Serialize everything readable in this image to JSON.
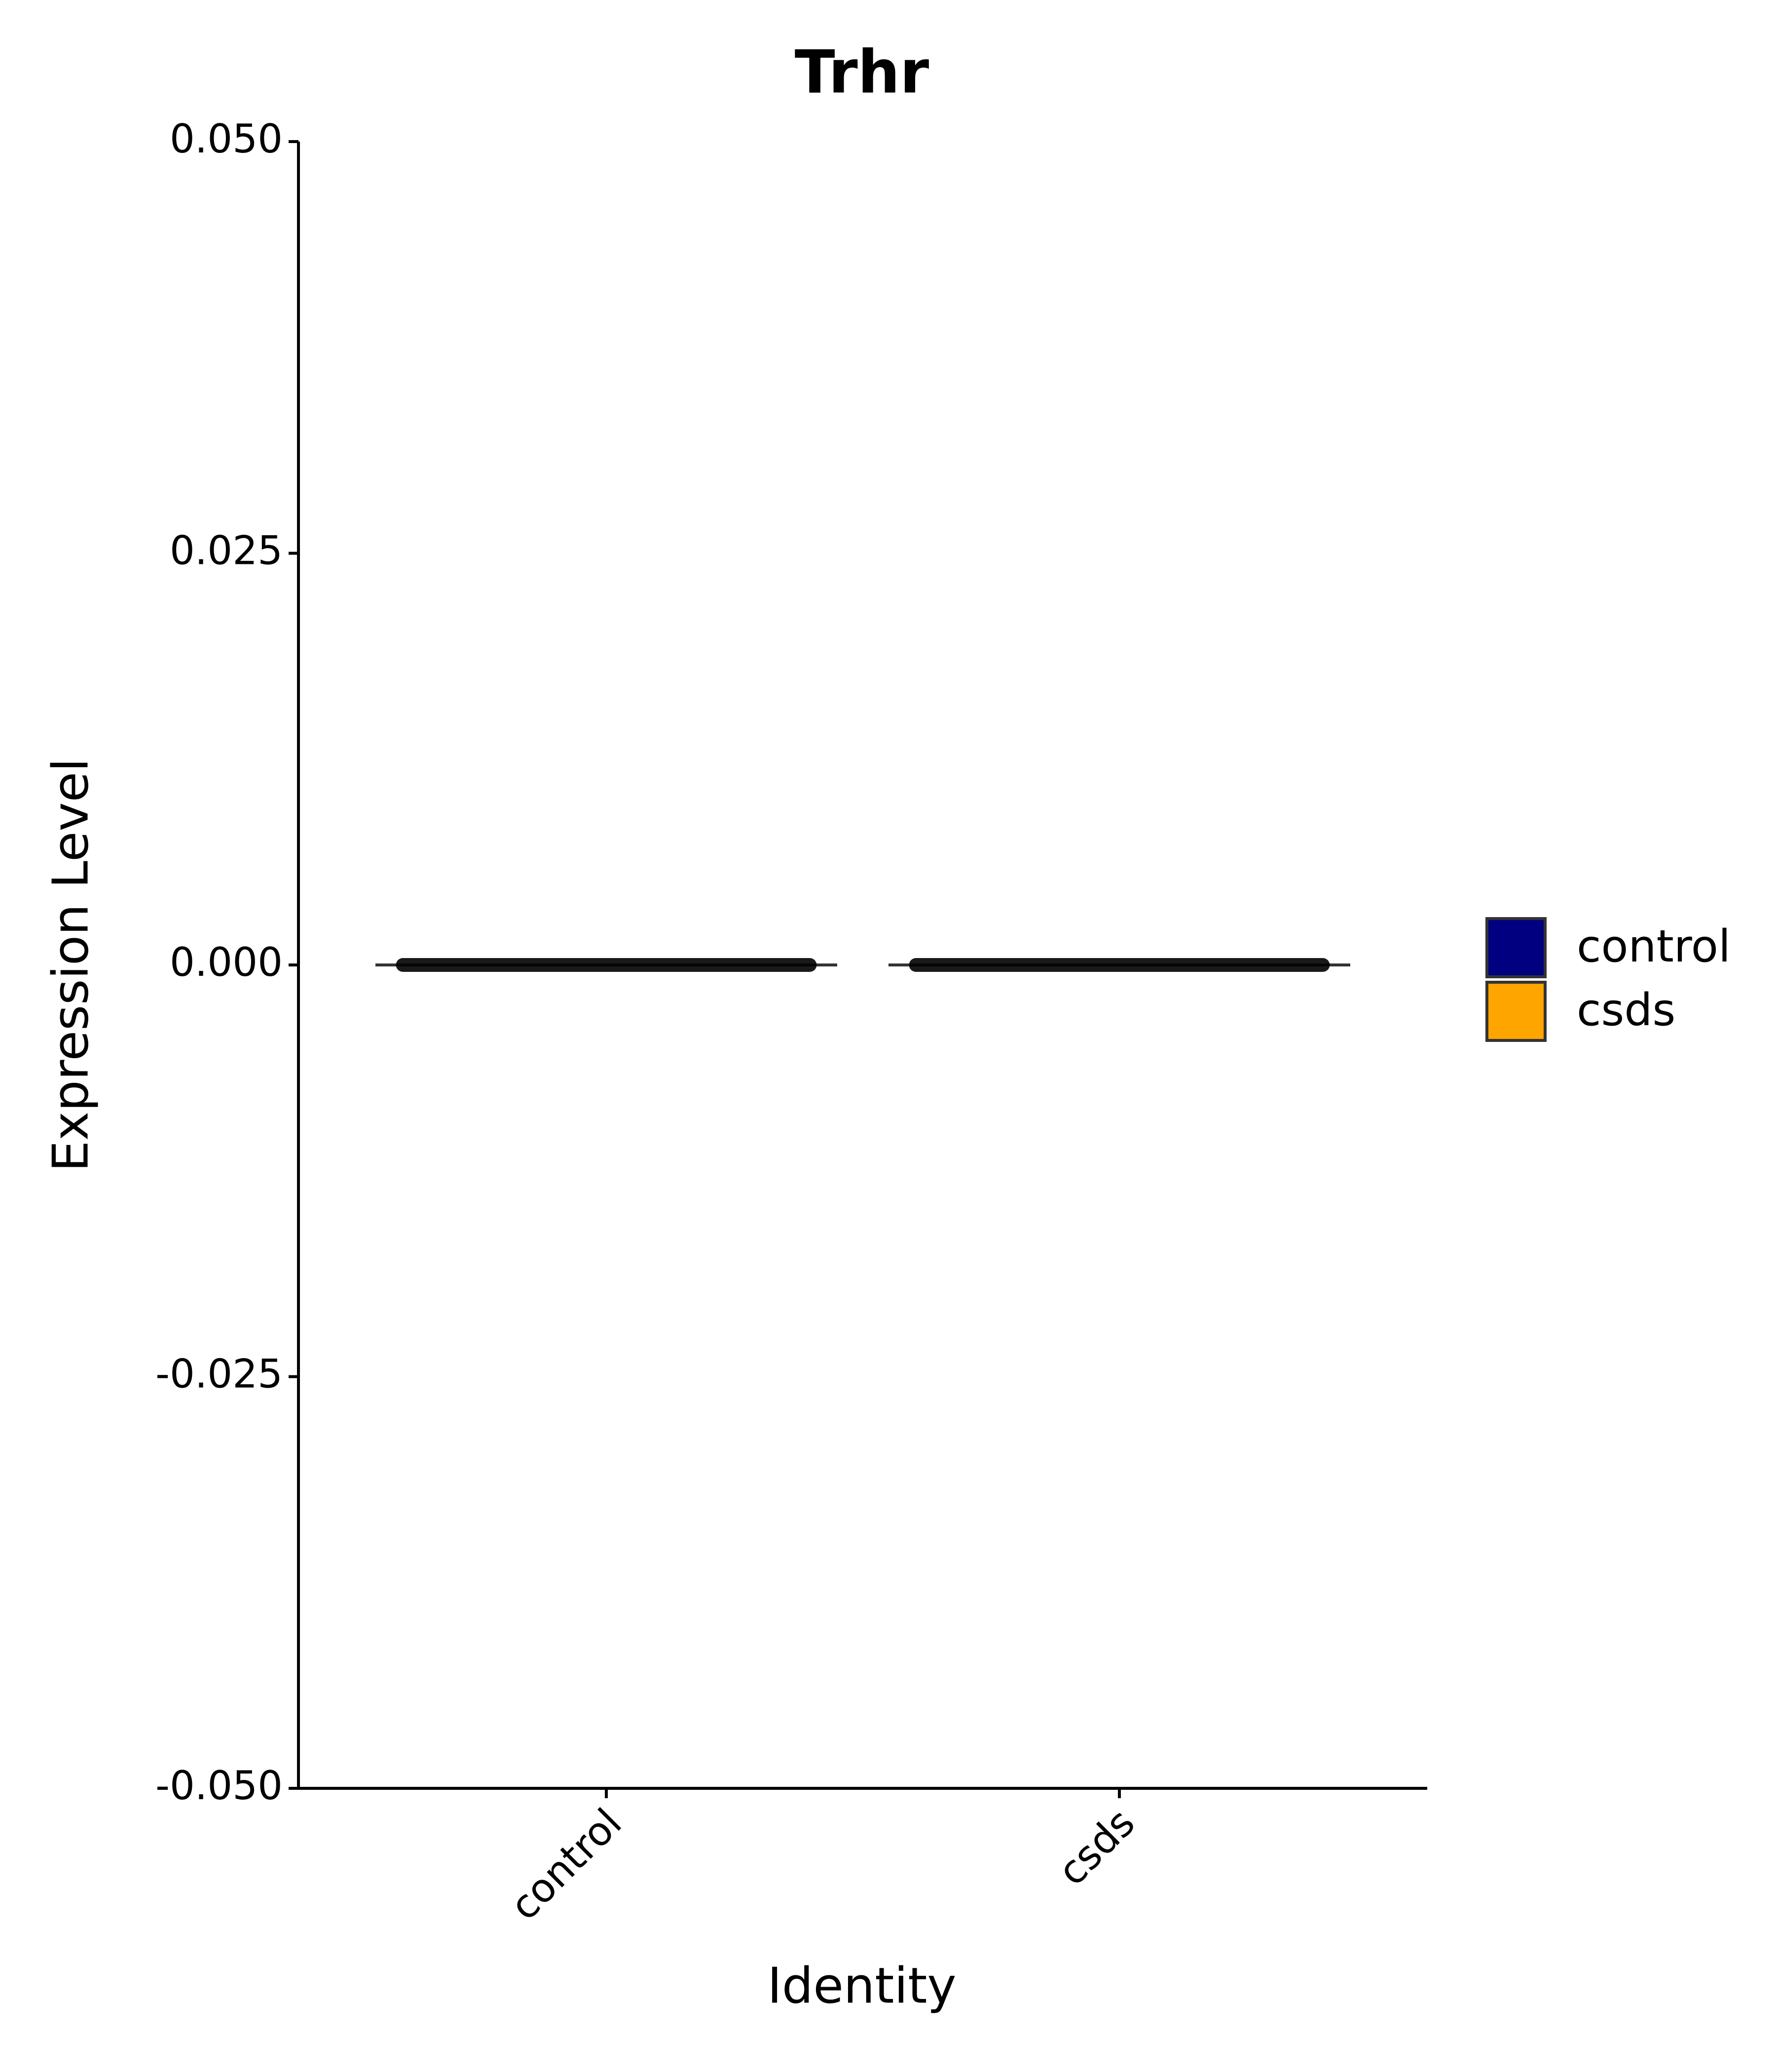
{
  "chart_data": {
    "type": "violin",
    "title": "Trhr",
    "x_label": "Identity",
    "y_label": "Expression Level",
    "categories": [
      "control",
      "csds"
    ],
    "series": [
      {
        "name": "control",
        "color": "#000080",
        "values": [
          0,
          null
        ]
      },
      {
        "name": "csds",
        "color": "#FFA500",
        "values": [
          null,
          0
        ]
      }
    ],
    "ylim": [
      -0.05,
      0.05
    ],
    "yticks": [
      {
        "value": -0.05,
        "label": "-0.050"
      },
      {
        "value": -0.025,
        "label": "-0.025"
      },
      {
        "value": 0,
        "label": "0.000"
      },
      {
        "value": 0.025,
        "label": "0.025"
      },
      {
        "value": 0.05,
        "label": "0.050"
      }
    ],
    "legend": "right"
  }
}
